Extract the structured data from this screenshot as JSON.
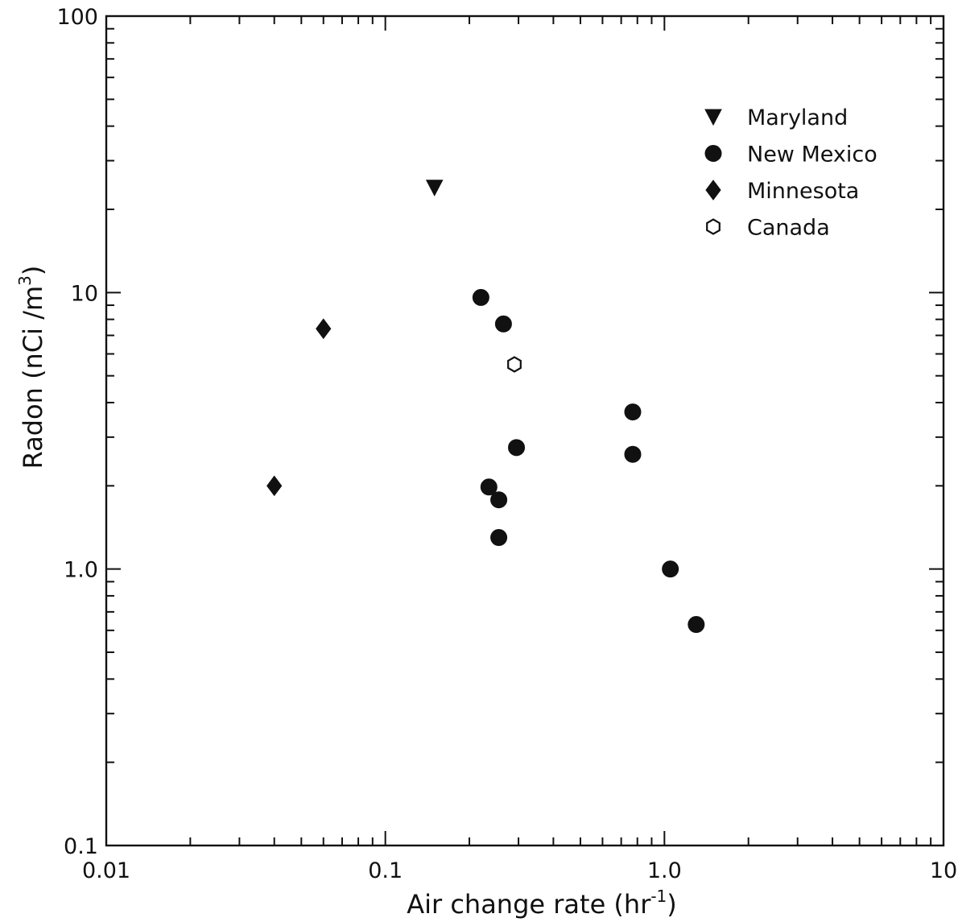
{
  "chart_data": {
    "type": "scatter",
    "title": "",
    "xlabel": "Air change rate (hr",
    "xlabel_sup": "-1",
    "xlabel_end": ")",
    "ylabel": "Radon (nCi /m",
    "ylabel_sup": "3",
    "ylabel_end": ")",
    "x_scale": "log",
    "y_scale": "log",
    "xlim": [
      0.01,
      10
    ],
    "ylim": [
      0.1,
      100
    ],
    "grid": false,
    "legend_position": "top-right",
    "x_tick_labels": [
      {
        "value": 0.01,
        "label": "0.01"
      },
      {
        "value": 0.1,
        "label": "0.1"
      },
      {
        "value": 1.0,
        "label": "1.0"
      },
      {
        "value": 10,
        "label": "10"
      }
    ],
    "y_tick_labels": [
      {
        "value": 0.1,
        "label": "0.1"
      },
      {
        "value": 1.0,
        "label": "1.0"
      },
      {
        "value": 10,
        "label": "10"
      },
      {
        "value": 100,
        "label": "100"
      }
    ],
    "series": [
      {
        "name": "Maryland",
        "marker": "triangle-down",
        "filled": true,
        "points": [
          {
            "x": 0.15,
            "y": 24
          }
        ]
      },
      {
        "name": "New Mexico",
        "marker": "circle",
        "filled": true,
        "points": [
          {
            "x": 0.22,
            "y": 9.6
          },
          {
            "x": 0.265,
            "y": 7.7
          },
          {
            "x": 0.295,
            "y": 2.75
          },
          {
            "x": 0.235,
            "y": 1.98
          },
          {
            "x": 0.255,
            "y": 1.78
          },
          {
            "x": 0.255,
            "y": 1.3
          },
          {
            "x": 0.77,
            "y": 3.7
          },
          {
            "x": 0.77,
            "y": 2.6
          },
          {
            "x": 1.05,
            "y": 1.0
          },
          {
            "x": 1.3,
            "y": 0.63
          }
        ]
      },
      {
        "name": "Minnesota",
        "marker": "diamond",
        "filled": true,
        "points": [
          {
            "x": 0.06,
            "y": 7.4
          },
          {
            "x": 0.04,
            "y": 2.0
          }
        ]
      },
      {
        "name": "Canada",
        "marker": "hexagon",
        "filled": false,
        "points": [
          {
            "x": 0.29,
            "y": 5.5
          }
        ]
      }
    ],
    "colors": {
      "ink": "#111111",
      "background": "#ffffff"
    }
  }
}
